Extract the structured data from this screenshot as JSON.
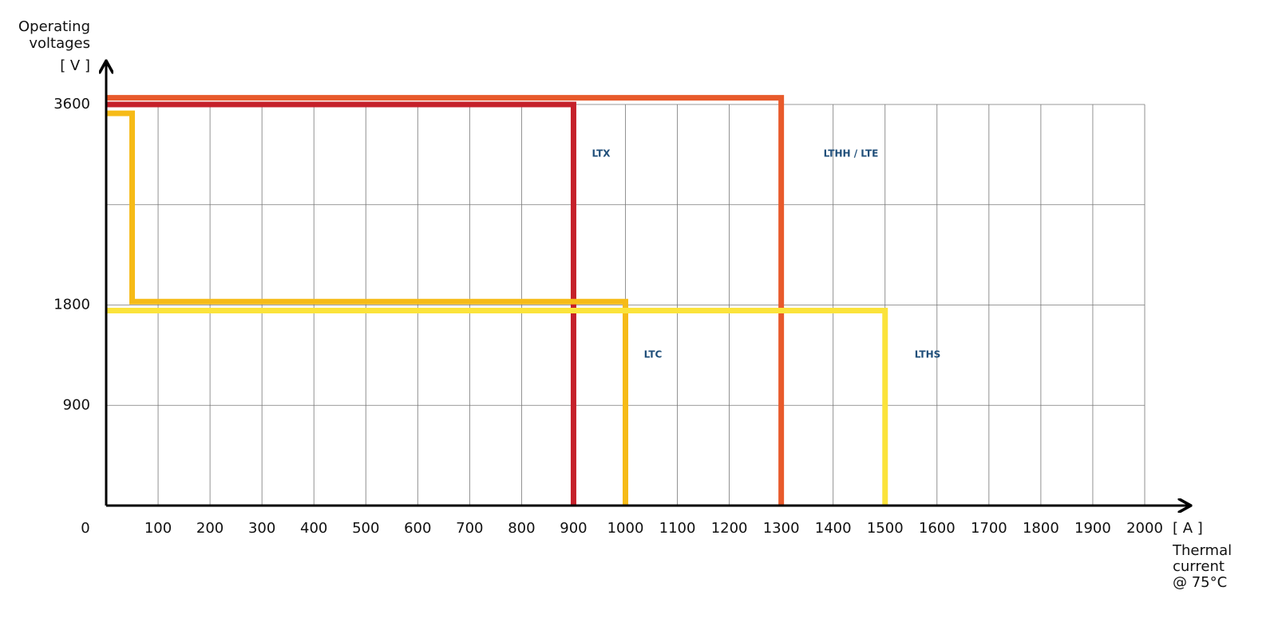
{
  "chart_data": {
    "type": "step",
    "y_label": [
      "Operating",
      "voltages"
    ],
    "y_unit": "[ V ]",
    "x_label": [
      "Thermal",
      "current",
      "@ 75°C"
    ],
    "x_unit": "[ A ]",
    "xlim": [
      0,
      2000
    ],
    "ylim": [
      0,
      3600
    ],
    "xticks": [
      0,
      100,
      200,
      300,
      400,
      500,
      600,
      700,
      800,
      900,
      1000,
      1100,
      1200,
      1300,
      1400,
      1500,
      1600,
      1700,
      1800,
      1900,
      2000
    ],
    "yticks": [
      900,
      1800,
      3600
    ],
    "ygrid": [
      900,
      1800,
      2700,
      3600
    ],
    "grid": true,
    "series": [
      {
        "name": "LTHH / LTE",
        "color": "#e85a2b",
        "x": [
          0,
          1300,
          1300
        ],
        "values": [
          3660,
          3660,
          0
        ]
      },
      {
        "name": "LTX",
        "color": "#c5202a",
        "x": [
          0,
          900,
          900
        ],
        "values": [
          3600,
          3600,
          0
        ]
      },
      {
        "name": "LTC",
        "color": "#f6bb17",
        "x": [
          0,
          50,
          50,
          1000,
          1000
        ],
        "values": [
          3520,
          3520,
          1830,
          1830,
          0
        ]
      },
      {
        "name": "LTHS",
        "color": "#fbe33b",
        "x": [
          0,
          1500,
          1500
        ],
        "values": [
          1750,
          1750,
          0
        ]
      }
    ]
  }
}
